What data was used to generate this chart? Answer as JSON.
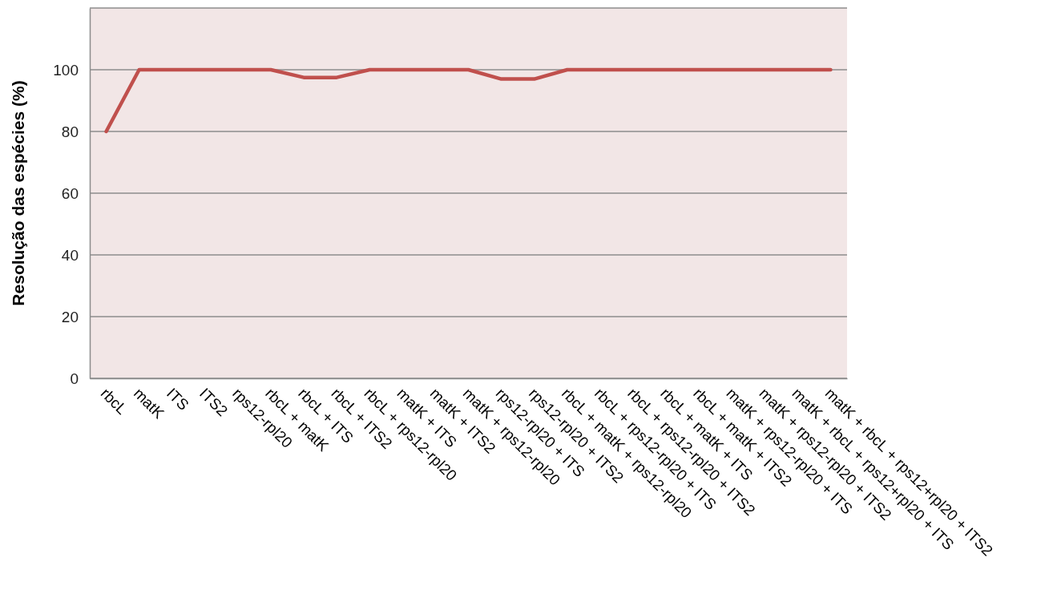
{
  "chart_data": {
    "type": "line",
    "ylabel": "Resolução das espécies (%)",
    "categories": [
      "rbcL",
      "matK",
      "ITS",
      "ITS2",
      "rps12-rpl20",
      "rbcL + matK",
      "rbcL + ITS",
      "rbcL + ITS2",
      "rbcL + rps12-rpl20",
      "matK + ITS",
      "matK + ITS2",
      "matK + rps12-rpl20",
      "rps12-rpl20 + ITS",
      "rps12-rpl20 + ITS2",
      "rbcL + matK + rps12-rpl20",
      "rbcL + rps12-rpl20 + ITS",
      "rbcL + rps12-rpl20 + ITS2",
      "rbcL + matK + ITS",
      "rbcL + matK + ITS2",
      "matK + rps12-rpl20 + ITS",
      "matK + rps12-rpl20 + ITS2",
      "matK + rbcL + rps12+rpl20 + ITS",
      "matK + rbcL + rps12+rpl20 + ITS2"
    ],
    "series": [
      {
        "color": "#c0504d",
        "values": [
          80,
          100,
          100,
          100,
          100,
          100,
          97.5,
          97.5,
          100,
          100,
          100,
          100,
          97,
          97,
          100,
          100,
          100,
          100,
          100,
          100,
          100,
          100,
          100
        ]
      }
    ],
    "ylim": [
      0,
      120
    ],
    "yticks": [
      0,
      20,
      40,
      60,
      80,
      100
    ],
    "grid": "y",
    "marker": "none",
    "line_style": "solid"
  }
}
